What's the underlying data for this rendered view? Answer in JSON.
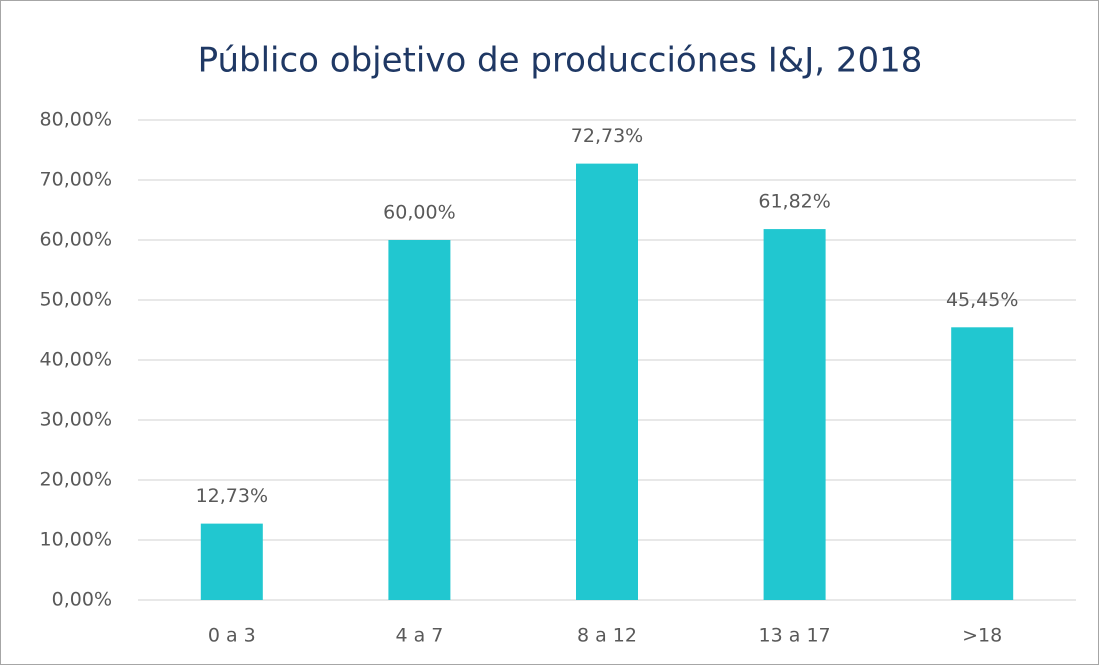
{
  "chart_data": {
    "type": "bar",
    "title": "Público objetivo de producciónes I&J, 2018",
    "categories": [
      "0 a 3",
      "4 a 7",
      "8 a 12",
      "13 a 17",
      ">18"
    ],
    "values": [
      12.73,
      60.0,
      72.73,
      61.82,
      45.45
    ],
    "value_labels": [
      "12,73%",
      "60,00%",
      "72,73%",
      "61,82%",
      "45,45%"
    ],
    "color": "#21c7d0",
    "ylim": [
      0,
      80
    ],
    "yticks": [
      {
        "value": 0,
        "label": "0,00%"
      },
      {
        "value": 10,
        "label": "10,00%"
      },
      {
        "value": 20,
        "label": "20,00%"
      },
      {
        "value": 30,
        "label": "30,00%"
      },
      {
        "value": 40,
        "label": "40,00%"
      },
      {
        "value": 50,
        "label": "50,00%"
      },
      {
        "value": 60,
        "label": "60,00%"
      },
      {
        "value": 70,
        "label": "70,00%"
      },
      {
        "value": 80,
        "label": "80,00%"
      }
    ],
    "grid": true
  }
}
